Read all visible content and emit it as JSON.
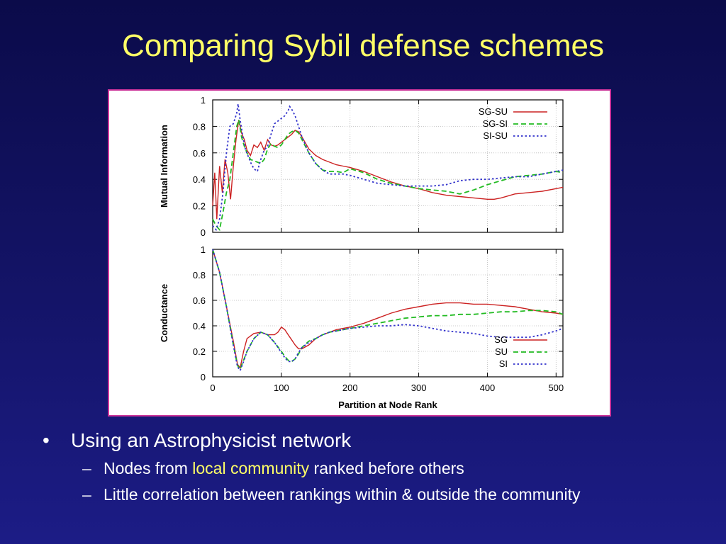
{
  "slide": {
    "title": "Comparing Sybil defense schemes",
    "bullets": [
      {
        "text": "Using an Astrophysicist network"
      }
    ],
    "sub_bullets": [
      {
        "before": "Nodes from ",
        "highlight": "local community",
        "after": " ranked before others"
      },
      {
        "text": "Little correlation between rankings within & outside the community"
      }
    ],
    "bullet_marker": "•",
    "sub_bullet_marker": "–",
    "colors": {
      "title": "#ffff66",
      "highlight": "#ffff66",
      "frame": "#cc3399"
    }
  },
  "chart_data": [
    {
      "type": "line",
      "title": "",
      "xlabel": "",
      "ylabel": "Mutual Information",
      "xlim": [
        0,
        510
      ],
      "ylim": [
        0,
        1
      ],
      "xticks": [
        0,
        100,
        200,
        300,
        400,
        500
      ],
      "yticks": [
        0,
        0.2,
        0.4,
        0.6,
        0.8,
        1
      ],
      "ytick_labels": [
        "0",
        "0.2",
        "0.4",
        "0.6",
        "0.8",
        "1"
      ],
      "grid": true,
      "legend_position": "top-right",
      "series": [
        {
          "name": "SG-SU",
          "color": "#cc2222",
          "dash": "solid",
          "x": [
            0,
            3,
            6,
            10,
            14,
            18,
            22,
            26,
            30,
            34,
            38,
            42,
            46,
            50,
            55,
            60,
            65,
            70,
            75,
            80,
            85,
            90,
            95,
            100,
            105,
            110,
            115,
            120,
            125,
            130,
            140,
            150,
            160,
            170,
            180,
            190,
            200,
            220,
            240,
            260,
            280,
            300,
            320,
            340,
            360,
            380,
            400,
            410,
            420,
            440,
            460,
            480,
            500,
            510
          ],
          "y": [
            0.2,
            0.45,
            0.1,
            0.5,
            0.3,
            0.55,
            0.45,
            0.25,
            0.5,
            0.7,
            0.85,
            0.75,
            0.7,
            0.62,
            0.58,
            0.66,
            0.64,
            0.68,
            0.62,
            0.7,
            0.66,
            0.65,
            0.66,
            0.68,
            0.7,
            0.72,
            0.74,
            0.77,
            0.76,
            0.72,
            0.63,
            0.58,
            0.55,
            0.53,
            0.51,
            0.5,
            0.49,
            0.46,
            0.42,
            0.38,
            0.35,
            0.33,
            0.3,
            0.28,
            0.27,
            0.26,
            0.25,
            0.25,
            0.26,
            0.29,
            0.3,
            0.31,
            0.33,
            0.34
          ]
        },
        {
          "name": "SG-SI",
          "color": "#22bb22",
          "dash": "dashed",
          "x": [
            0,
            5,
            10,
            15,
            20,
            25,
            30,
            35,
            38,
            42,
            46,
            50,
            55,
            60,
            65,
            70,
            75,
            80,
            85,
            90,
            95,
            100,
            105,
            110,
            115,
            120,
            125,
            130,
            140,
            150,
            160,
            170,
            180,
            190,
            200,
            220,
            240,
            260,
            280,
            300,
            320,
            340,
            360,
            380,
            400,
            420,
            440,
            460,
            480,
            500,
            510
          ],
          "y": [
            0.1,
            0.05,
            0.02,
            0.15,
            0.3,
            0.4,
            0.6,
            0.8,
            0.85,
            0.72,
            0.65,
            0.6,
            0.55,
            0.54,
            0.53,
            0.52,
            0.55,
            0.63,
            0.67,
            0.65,
            0.64,
            0.66,
            0.7,
            0.74,
            0.76,
            0.77,
            0.75,
            0.7,
            0.6,
            0.52,
            0.47,
            0.46,
            0.46,
            0.45,
            0.48,
            0.45,
            0.4,
            0.37,
            0.35,
            0.33,
            0.32,
            0.31,
            0.29,
            0.32,
            0.36,
            0.39,
            0.42,
            0.43,
            0.44,
            0.46,
            0.45
          ]
        },
        {
          "name": "SI-SU",
          "color": "#3333cc",
          "dash": "dotted",
          "x": [
            0,
            5,
            10,
            15,
            20,
            25,
            30,
            35,
            37,
            40,
            44,
            48,
            52,
            56,
            60,
            65,
            70,
            75,
            80,
            85,
            90,
            95,
            100,
            105,
            110,
            112,
            115,
            120,
            125,
            130,
            140,
            150,
            160,
            170,
            180,
            190,
            200,
            220,
            240,
            260,
            280,
            300,
            320,
            340,
            360,
            380,
            400,
            420,
            440,
            460,
            480,
            500,
            510
          ],
          "y": [
            0.05,
            0.02,
            0.1,
            0.3,
            0.6,
            0.8,
            0.82,
            0.9,
            0.97,
            0.85,
            0.72,
            0.62,
            0.57,
            0.52,
            0.48,
            0.46,
            0.55,
            0.62,
            0.65,
            0.74,
            0.82,
            0.84,
            0.86,
            0.88,
            0.92,
            0.95,
            0.93,
            0.88,
            0.8,
            0.72,
            0.6,
            0.52,
            0.47,
            0.44,
            0.44,
            0.44,
            0.43,
            0.4,
            0.37,
            0.36,
            0.35,
            0.35,
            0.35,
            0.36,
            0.39,
            0.4,
            0.4,
            0.41,
            0.42,
            0.42,
            0.44,
            0.46,
            0.47
          ]
        }
      ]
    },
    {
      "type": "line",
      "title": "",
      "xlabel": "Partition at Node Rank",
      "ylabel": "Conductance",
      "xlim": [
        0,
        510
      ],
      "ylim": [
        0,
        1
      ],
      "xticks": [
        0,
        100,
        200,
        300,
        400,
        500
      ],
      "yticks": [
        0,
        0.2,
        0.4,
        0.6,
        0.8,
        1
      ],
      "ytick_labels": [
        "0",
        "0.2",
        "0.4",
        "0.6",
        "0.8",
        "1"
      ],
      "grid": true,
      "legend_position": "bottom-right",
      "series": [
        {
          "name": "SG",
          "color": "#cc2222",
          "dash": "solid",
          "x": [
            0,
            10,
            20,
            30,
            36,
            40,
            45,
            50,
            60,
            70,
            80,
            90,
            95,
            100,
            105,
            110,
            115,
            120,
            125,
            130,
            140,
            150,
            160,
            170,
            180,
            190,
            200,
            220,
            240,
            260,
            280,
            300,
            320,
            340,
            360,
            380,
            400,
            420,
            440,
            460,
            480,
            500,
            510
          ],
          "y": [
            1.0,
            0.82,
            0.55,
            0.28,
            0.1,
            0.07,
            0.2,
            0.3,
            0.34,
            0.35,
            0.33,
            0.33,
            0.35,
            0.39,
            0.37,
            0.33,
            0.29,
            0.25,
            0.22,
            0.22,
            0.25,
            0.3,
            0.33,
            0.35,
            0.37,
            0.38,
            0.39,
            0.42,
            0.46,
            0.5,
            0.53,
            0.55,
            0.57,
            0.58,
            0.58,
            0.57,
            0.57,
            0.56,
            0.55,
            0.53,
            0.51,
            0.5,
            0.49
          ]
        },
        {
          "name": "SU",
          "color": "#22bb22",
          "dash": "dashed",
          "x": [
            0,
            10,
            20,
            30,
            36,
            40,
            45,
            50,
            60,
            70,
            80,
            90,
            100,
            105,
            110,
            115,
            120,
            125,
            130,
            140,
            150,
            160,
            170,
            180,
            190,
            200,
            220,
            240,
            260,
            280,
            300,
            320,
            340,
            360,
            380,
            400,
            420,
            440,
            460,
            480,
            500,
            510
          ],
          "y": [
            1.0,
            0.82,
            0.55,
            0.25,
            0.09,
            0.06,
            0.13,
            0.2,
            0.3,
            0.35,
            0.33,
            0.27,
            0.2,
            0.16,
            0.13,
            0.12,
            0.14,
            0.18,
            0.23,
            0.28,
            0.3,
            0.33,
            0.35,
            0.36,
            0.37,
            0.38,
            0.4,
            0.42,
            0.44,
            0.46,
            0.47,
            0.48,
            0.48,
            0.49,
            0.49,
            0.5,
            0.51,
            0.51,
            0.52,
            0.52,
            0.51,
            0.49
          ]
        },
        {
          "name": "SI",
          "color": "#3333cc",
          "dash": "dotted",
          "x": [
            0,
            10,
            20,
            30,
            36,
            40,
            45,
            50,
            60,
            70,
            80,
            90,
            100,
            105,
            110,
            115,
            120,
            125,
            130,
            140,
            150,
            160,
            170,
            180,
            190,
            200,
            220,
            240,
            260,
            280,
            300,
            320,
            340,
            360,
            380,
            400,
            420,
            440,
            460,
            480,
            500,
            510
          ],
          "y": [
            1.0,
            0.82,
            0.55,
            0.25,
            0.08,
            0.05,
            0.12,
            0.2,
            0.3,
            0.35,
            0.33,
            0.27,
            0.19,
            0.15,
            0.12,
            0.12,
            0.14,
            0.19,
            0.23,
            0.27,
            0.3,
            0.33,
            0.35,
            0.36,
            0.37,
            0.38,
            0.39,
            0.4,
            0.4,
            0.41,
            0.4,
            0.38,
            0.36,
            0.35,
            0.34,
            0.32,
            0.31,
            0.31,
            0.31,
            0.33,
            0.36,
            0.38
          ]
        }
      ]
    }
  ]
}
